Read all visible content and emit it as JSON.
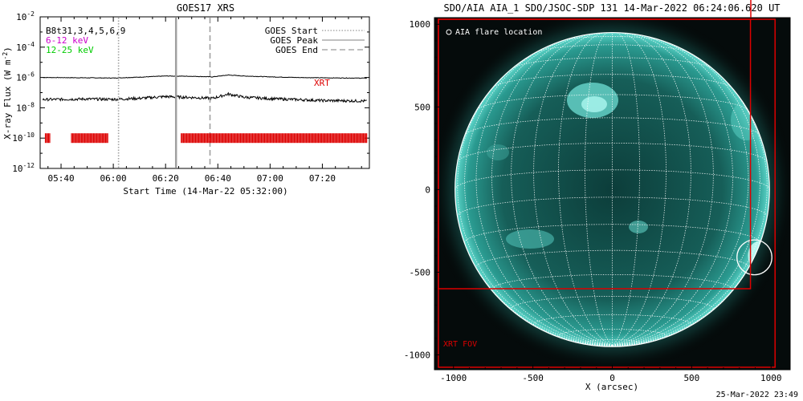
{
  "left_plot": {
    "title": "GOES17 XRS",
    "ylabel_parts": [
      "X-ray Flux (W m",
      "-2",
      ")"
    ],
    "xlabel": "Start Time (14-Mar-22 05:32:00)",
    "y_ticks": [
      {
        "base": "10",
        "exp": "-2"
      },
      {
        "base": "10",
        "exp": "-4"
      },
      {
        "base": "10",
        "exp": "-6"
      },
      {
        "base": "10",
        "exp": "-8"
      },
      {
        "base": "10",
        "exp": "-10"
      },
      {
        "base": "10",
        "exp": "-12"
      }
    ],
    "x_ticks": [
      "05:40",
      "06:00",
      "06:20",
      "06:40",
      "07:00",
      "07:20"
    ],
    "text_labels": {
      "bat": "B8t31,3,4,5,6,9",
      "band1": "6-12 keV",
      "band2": "12-25 keV",
      "xrt": "XRT"
    },
    "legend": [
      "GOES Start",
      "GOES Peak",
      "GOES End"
    ],
    "colors": {
      "band1": "#cc00cc",
      "band2": "#00cc00",
      "xrt": "#dd0000",
      "marker": "#a0a0a0"
    }
  },
  "right_plot": {
    "title": "SDO/AIA AIA_1 SDO/JSOC-SDP 131 14-Mar-2022 06:24:06.620 UT",
    "xlabel": "X (arcsec)",
    "x_ticks": [
      "-1000",
      "-500",
      "0",
      "500",
      "1000"
    ],
    "y_ticks": [
      "1000",
      "500",
      "0",
      "-500",
      "-1000"
    ],
    "flare_label": "AIA flare location",
    "fov_label": "XRT FOV",
    "colors": {
      "fov": "#dd0000",
      "disk": "#1e8c84",
      "grid": "#ffffff"
    }
  },
  "footer": "25-Mar-2022 23:49",
  "chart_data": [
    {
      "type": "line",
      "title": "GOES17 XRS",
      "xlabel": "Start Time (14-Mar-22 05:32:00)",
      "ylabel": "X-ray Flux (W m-2)",
      "y_scale": "log",
      "ylim": [
        1e-12,
        0.01
      ],
      "xlim": [
        "05:32",
        "07:38"
      ],
      "series": [
        {
          "name": "6-12 keV",
          "x": [
            "05:33",
            "05:50",
            "06:00",
            "06:10",
            "06:20",
            "06:30",
            "06:38",
            "06:44",
            "06:50",
            "07:00",
            "07:10",
            "07:20",
            "07:37"
          ],
          "values": [
            1e-06,
            9.5e-07,
            9.2e-07,
            1.05e-06,
            1.25e-06,
            1.2e-06,
            1.1e-06,
            1.45e-06,
            1.25e-06,
            1.1e-06,
            1e-06,
            9.5e-07,
            9e-07
          ]
        },
        {
          "name": "12-25 keV",
          "x": [
            "05:33",
            "05:50",
            "06:00",
            "06:10",
            "06:20",
            "06:30",
            "06:38",
            "06:44",
            "06:50",
            "07:00",
            "07:10",
            "07:20",
            "07:37"
          ],
          "values": [
            3.5e-08,
            3.8e-08,
            3.6e-08,
            4.2e-08,
            5.5e-08,
            4.8e-08,
            4.2e-08,
            8e-08,
            5e-08,
            4e-08,
            3.5e-08,
            3e-08,
            2.8e-08
          ]
        }
      ],
      "markers": {
        "GOES Start": "06:02",
        "GOES Peak": "06:24",
        "GOES End": "06:37"
      },
      "xrt_intervals": [
        [
          "05:34",
          "05:36"
        ],
        [
          "05:44",
          "05:58"
        ],
        [
          "06:26",
          "07:37"
        ]
      ],
      "xrt_level": 1e-10
    },
    {
      "type": "image",
      "title": "SDO/AIA AIA_1 SDO/JSOC-SDP 131 14-Mar-2022 06:24:06.620 UT",
      "xlabel": "X (arcsec)",
      "xlim": [
        -1120,
        1120
      ],
      "ylim": [
        -1090,
        1040
      ],
      "solar_radius": 990,
      "flare_location": [
        895,
        -410
      ],
      "flare_circle_radius": 110,
      "xrt_fov": [
        {
          "x0": -1095,
          "y0": -600,
          "x1": 870,
          "y1": 1030
        },
        {
          "x0": -1095,
          "y0": -1075,
          "x1": 1025,
          "y1": 1030
        }
      ]
    }
  ]
}
